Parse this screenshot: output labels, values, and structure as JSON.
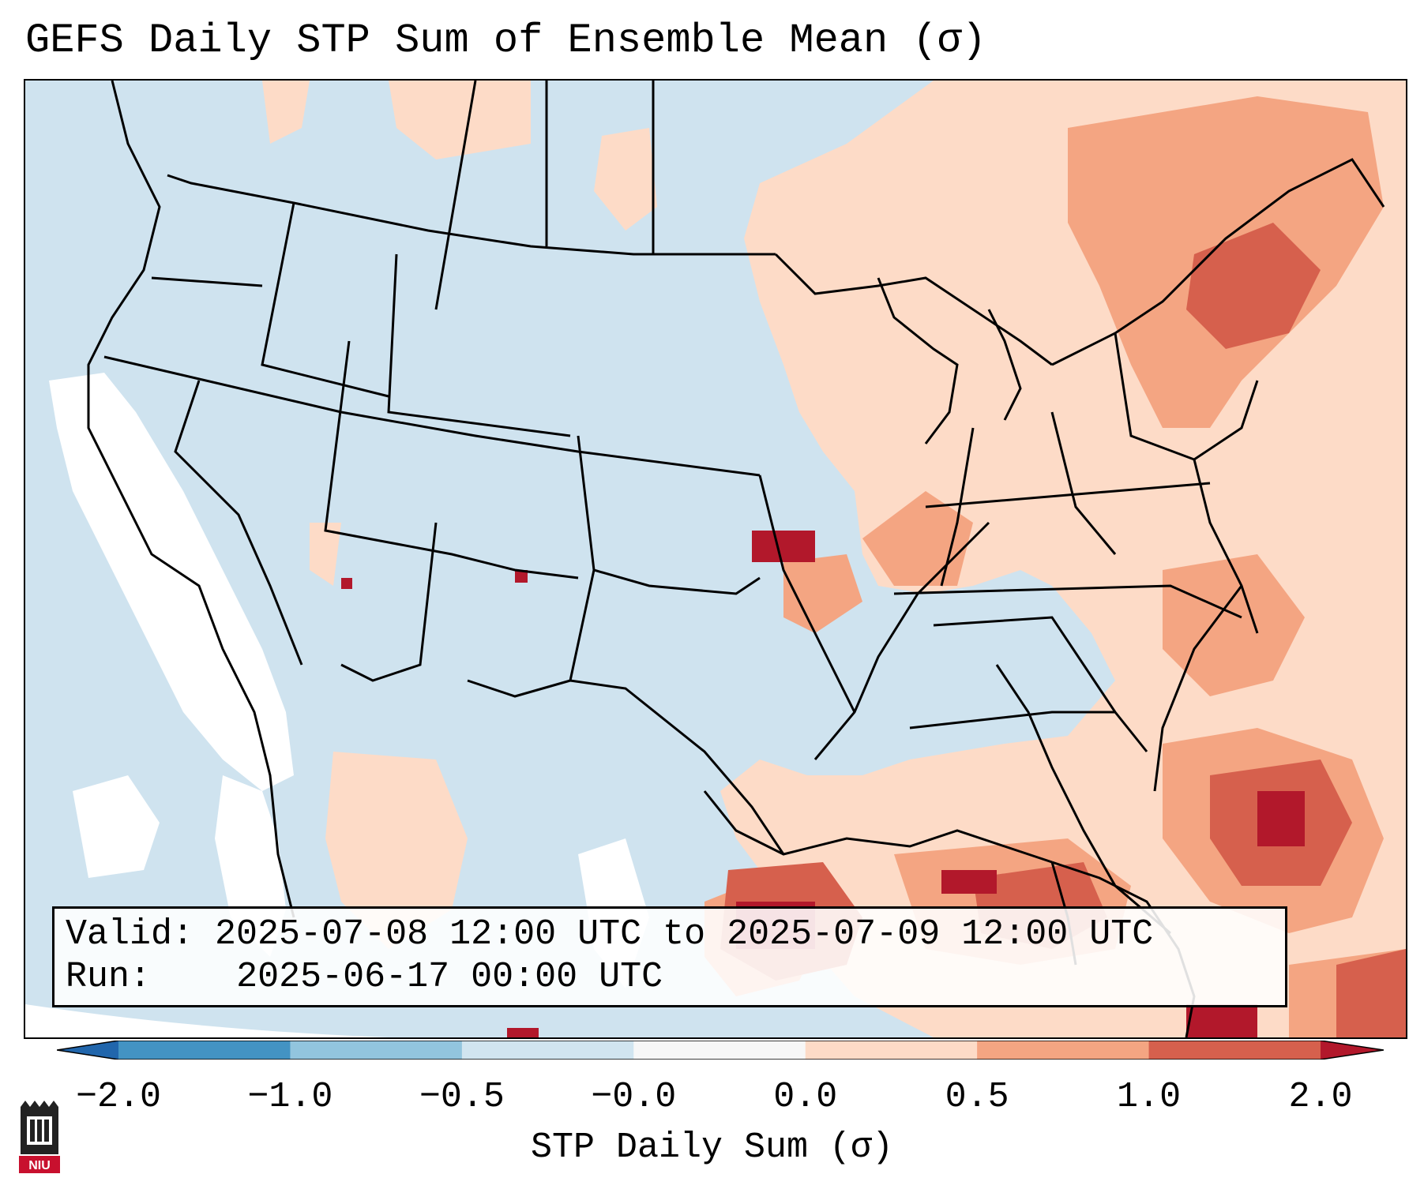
{
  "title": "GEFS Daily STP Sum of Ensemble Mean (σ)",
  "info": {
    "valid_label": "Valid:",
    "valid_value": "2025-07-08 12:00 UTC to 2025-07-09 12:00 UTC",
    "run_label": "Run:",
    "run_value": "2025-06-17 00:00 UTC"
  },
  "colorbar": {
    "label": "STP Daily Sum (σ)",
    "ticks": [
      "−2.0",
      "−1.0",
      "−0.5",
      "−0.0",
      "0.0",
      "0.5",
      "1.0",
      "2.0"
    ],
    "segments": [
      {
        "range": "-2.0 to -1.0",
        "color": "#4393c3"
      },
      {
        "range": "-1.0 to -0.5",
        "color": "#92c5de"
      },
      {
        "range": "-0.5 to -0.0",
        "color": "#d1e5f0"
      },
      {
        "range": "-0.0 to 0.0",
        "color": "#f7f7f7"
      },
      {
        "range": "0.0 to 0.5",
        "color": "#fddbc7"
      },
      {
        "range": "0.5 to 1.0",
        "color": "#f4a582"
      },
      {
        "range": "1.0 to 2.0",
        "color": "#d6604d"
      }
    ],
    "under_color": "#2166ac",
    "over_color": "#b2182b"
  },
  "logo": {
    "text": "NIU",
    "icon": "niu-castle-logo-icon"
  }
}
